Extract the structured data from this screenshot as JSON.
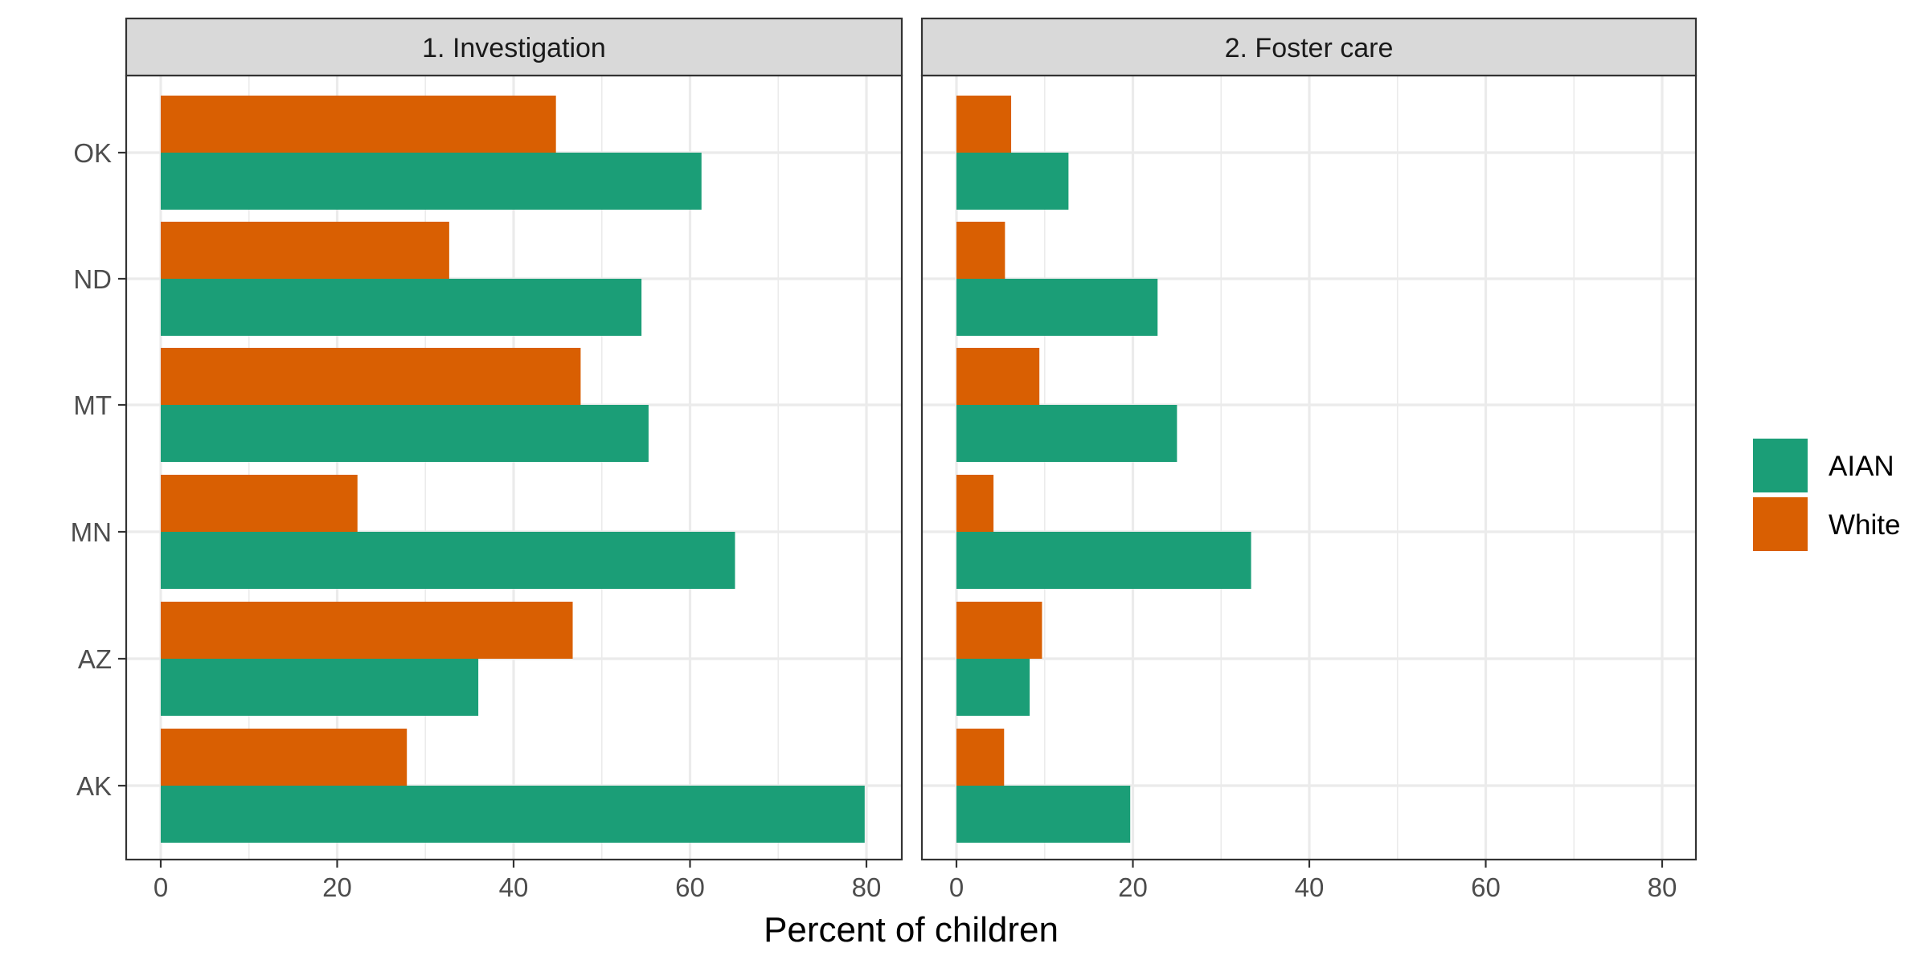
{
  "chart_data": {
    "type": "bar",
    "orientation": "horizontal",
    "facets": [
      "1. Investigation",
      "2. Foster care"
    ],
    "categories": [
      "AK",
      "AZ",
      "MN",
      "MT",
      "ND",
      "OK"
    ],
    "xlabel": "Percent of children",
    "ylabel": "",
    "xlim": [
      0,
      80
    ],
    "xticks": [
      "0",
      "20",
      "40",
      "60",
      "80"
    ],
    "grid": true,
    "legend_position": "right",
    "series": [
      {
        "name": "AIAN",
        "color": "#1b9e77",
        "values": {
          "1. Investigation": [
            79.8,
            36.0,
            65.1,
            55.3,
            54.5,
            61.3
          ],
          "2. Foster care": [
            19.7,
            8.3,
            33.4,
            25.0,
            22.8,
            12.7
          ]
        }
      },
      {
        "name": "White",
        "color": "#d95f02",
        "values": {
          "1. Investigation": [
            27.9,
            46.7,
            22.3,
            47.6,
            32.7,
            44.8
          ],
          "2. Foster care": [
            5.4,
            9.7,
            4.2,
            9.4,
            5.5,
            6.2
          ]
        }
      }
    ]
  }
}
